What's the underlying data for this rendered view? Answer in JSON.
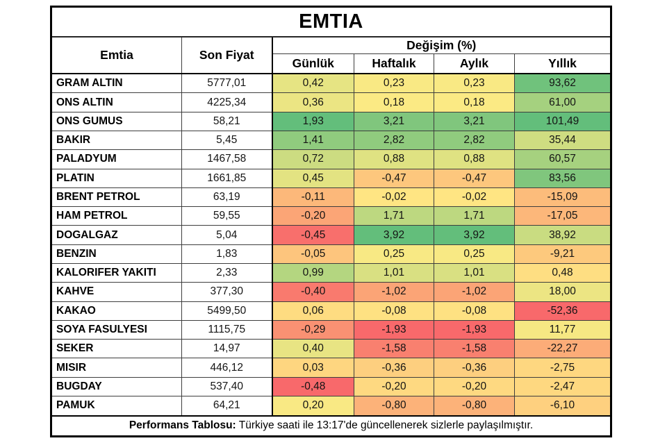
{
  "title": "EMTIA",
  "columns": {
    "commodity": "Emtia",
    "price": "Son Fiyat",
    "group": "Değişim (%)",
    "periods": [
      "Günlük",
      "Haftalık",
      "Aylık",
      "Yıllık"
    ]
  },
  "footer": {
    "bold": "Performans Tablosu:",
    "rest": " Türkiye saati ile 13:17'de güncellenerek sizlerle paylaşılmıştır."
  },
  "heatmap_colors": {
    "min": "#F8696B",
    "mid": "#FFEB84",
    "max": "#63BE7B"
  },
  "number_format": {
    "decimals": 2,
    "decimal_separator": ","
  },
  "chart_data": {
    "type": "table",
    "title": "EMTIA",
    "columns": [
      "Emtia",
      "Son Fiyat",
      "Günlük",
      "Haftalık",
      "Aylık",
      "Yıllık"
    ],
    "change_columns_note": "values are percent change; cell fill = per-column 3-color scale red#F8696B / yellow#FFEB84(median) / green#63BE7B",
    "rows": [
      [
        "GRAM ALTIN",
        5777.01,
        0.42,
        0.23,
        0.23,
        93.62
      ],
      [
        "ONS ALTIN",
        4225.34,
        0.36,
        0.18,
        0.18,
        61.0
      ],
      [
        "ONS GUMUS",
        58.21,
        1.93,
        3.21,
        3.21,
        101.49
      ],
      [
        "BAKIR",
        5.45,
        1.41,
        2.82,
        2.82,
        35.44
      ],
      [
        "PALADYUM",
        1467.58,
        0.72,
        0.88,
        0.88,
        60.57
      ],
      [
        "PLATIN",
        1661.85,
        0.45,
        -0.47,
        -0.47,
        83.56
      ],
      [
        "BRENT PETROL",
        63.19,
        -0.11,
        -0.02,
        -0.02,
        -15.09
      ],
      [
        "HAM PETROL",
        59.55,
        -0.2,
        1.71,
        1.71,
        -17.05
      ],
      [
        "DOGALGAZ",
        5.04,
        -0.45,
        3.92,
        3.92,
        38.92
      ],
      [
        "BENZIN",
        1.83,
        -0.05,
        0.25,
        0.25,
        -9.21
      ],
      [
        "KALORIFER YAKITI",
        2.33,
        0.99,
        1.01,
        1.01,
        0.48
      ],
      [
        "KAHVE",
        377.3,
        -0.4,
        -1.02,
        -1.02,
        18.0
      ],
      [
        "KAKAO",
        5499.5,
        0.06,
        -0.08,
        -0.08,
        -52.36
      ],
      [
        "SOYA FASULYESI",
        1115.75,
        -0.29,
        -1.93,
        -1.93,
        11.77
      ],
      [
        "SEKER",
        14.97,
        0.4,
        -1.58,
        -1.58,
        -22.27
      ],
      [
        "MISIR",
        446.12,
        0.03,
        -0.36,
        -0.36,
        -2.75
      ],
      [
        "BUGDAY",
        537.4,
        -0.48,
        -0.2,
        -0.2,
        -2.47
      ],
      [
        "PAMUK",
        64.21,
        0.2,
        -0.8,
        -0.8,
        -6.1
      ]
    ]
  }
}
